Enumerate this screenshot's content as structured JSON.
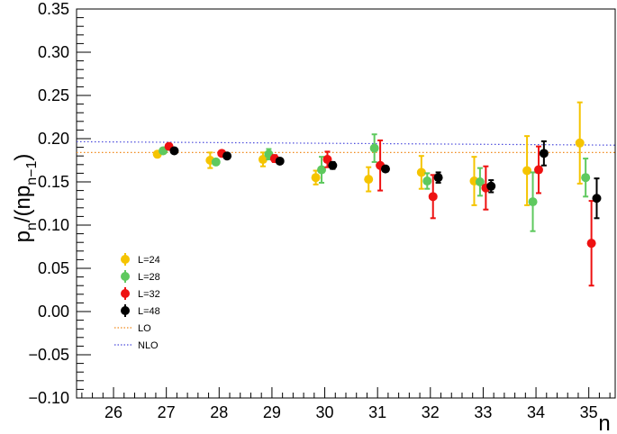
{
  "chart_data": {
    "type": "scatter",
    "xlabel": "n",
    "ylabel": {
      "p": "p",
      "p_sub": "n",
      "mid": "/(np",
      "mid_sub": "n−1",
      "close": ")"
    },
    "xlim": [
      25.3,
      35.5
    ],
    "ylim": [
      -0.1,
      0.35
    ],
    "x_ticks": [
      26,
      27,
      28,
      29,
      30,
      31,
      32,
      33,
      34,
      35
    ],
    "y_ticks": [
      -0.1,
      -0.05,
      0.0,
      0.05,
      0.1,
      0.15,
      0.2,
      0.25,
      0.3,
      0.35
    ],
    "x_tick_labels": [
      "26",
      "27",
      "28",
      "29",
      "30",
      "31",
      "32",
      "33",
      "34",
      "35"
    ],
    "y_tick_labels": [
      "−0.10",
      "−0.05",
      "0.00",
      "0.05",
      "0.10",
      "0.15",
      "0.20",
      "0.25",
      "0.30",
      "0.35"
    ],
    "legend_position": "left",
    "series": [
      {
        "name": "L=24",
        "color": "#f5c400",
        "x": [
          27,
          28,
          29,
          30,
          31,
          32,
          33,
          34,
          35
        ],
        "y": [
          0.182,
          0.175,
          0.176,
          0.155,
          0.153,
          0.161,
          0.151,
          0.163,
          0.195
        ],
        "err": [
          0.003,
          0.009,
          0.008,
          0.008,
          0.014,
          0.019,
          0.028,
          0.04,
          0.047
        ]
      },
      {
        "name": "L=28",
        "color": "#5ec95e",
        "x": [
          27,
          28,
          29,
          30,
          31,
          32,
          33,
          34,
          35
        ],
        "y": [
          0.186,
          0.173,
          0.182,
          0.164,
          0.189,
          0.151,
          0.15,
          0.127,
          0.155
        ],
        "err": [
          0.003,
          0.003,
          0.006,
          0.015,
          0.016,
          0.009,
          0.016,
          0.034,
          0.022
        ]
      },
      {
        "name": "L=32",
        "color": "#ee1111",
        "x": [
          27,
          28,
          29,
          30,
          31,
          32,
          33,
          34,
          35
        ],
        "y": [
          0.191,
          0.183,
          0.177,
          0.176,
          0.169,
          0.133,
          0.143,
          0.164,
          0.079
        ],
        "err": [
          0.003,
          0.003,
          0.004,
          0.009,
          0.029,
          0.025,
          0.025,
          0.027,
          0.049
        ]
      },
      {
        "name": "L=48",
        "color": "#000000",
        "x": [
          27,
          28,
          29,
          30,
          31,
          32,
          33,
          34,
          35
        ],
        "y": [
          0.186,
          0.18,
          0.174,
          0.169,
          0.165,
          0.155,
          0.145,
          0.183,
          0.131
        ],
        "err": [
          0.002,
          0.002,
          0.003,
          0.004,
          0.003,
          0.006,
          0.007,
          0.014,
          0.023
        ]
      }
    ],
    "reference_lines": [
      {
        "name": "LO",
        "color": "#f08a1c",
        "style": "dotted",
        "y": [
          0.184,
          0.184
        ]
      },
      {
        "name": "NLO",
        "color": "#4c4cdc",
        "style": "dotted",
        "y": [
          0.1965,
          0.1925
        ]
      }
    ]
  }
}
